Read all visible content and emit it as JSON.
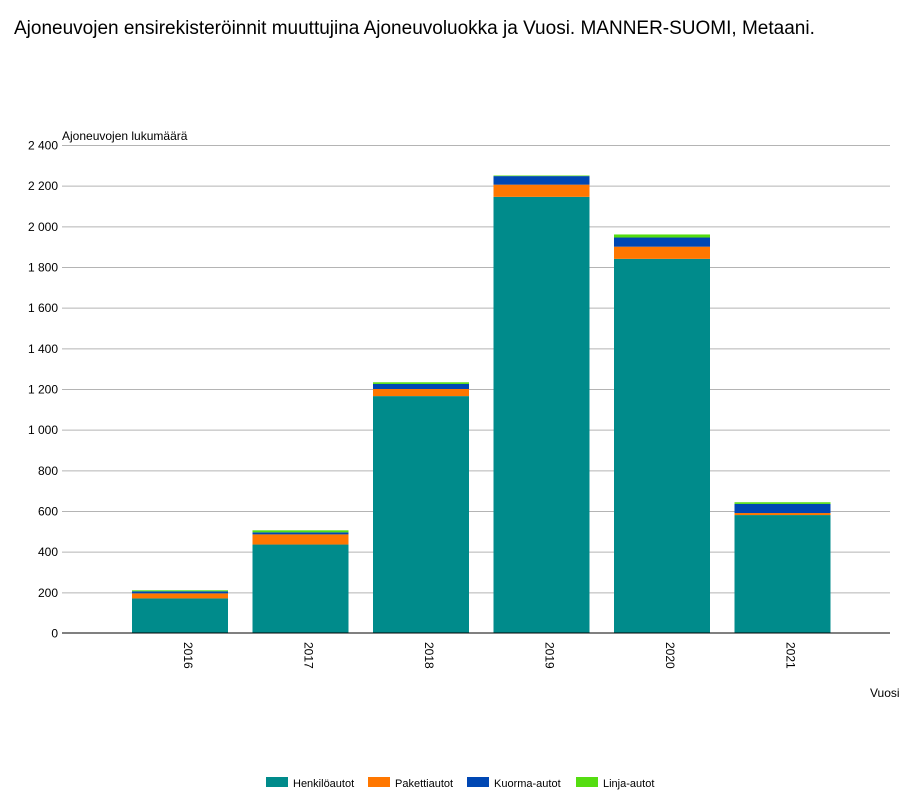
{
  "title": "Ajoneuvojen ensirekisteröinnit muuttujina Ajoneuvoluokka ja Vuosi. MANNER-SUOMI, Metaani.",
  "chart_data": {
    "type": "bar",
    "stacked": true,
    "title": "Ajoneuvojen ensirekisteröinnit muuttujina Ajoneuvoluokka ja Vuosi. MANNER-SUOMI, Metaani.",
    "ylabel": "Ajoneuvojen lukumäärä",
    "xlabel": "Vuosi",
    "categories": [
      "2016",
      "2017",
      "2018",
      "2019",
      "2020",
      "2021"
    ],
    "ylim": [
      0,
      2400
    ],
    "yticks": [
      0,
      200,
      400,
      600,
      800,
      1000,
      1200,
      1400,
      1600,
      1800,
      2000,
      2200,
      2400
    ],
    "ytick_labels": [
      "0",
      "200",
      "400",
      "600",
      "800",
      "1 000",
      "1 200",
      "1 400",
      "1 600",
      "1 800",
      "2 000",
      "2 200",
      "2 400"
    ],
    "grid": true,
    "legend_position": "bottom",
    "series": [
      {
        "name": "Henkilöautot",
        "color": "#008b8b",
        "values": [
          170,
          435,
          1165,
          2145,
          1840,
          580
        ]
      },
      {
        "name": "Pakettiautot",
        "color": "#ff7700",
        "values": [
          25,
          50,
          35,
          60,
          60,
          10
        ]
      },
      {
        "name": "Kuorma-autot",
        "color": "#0047b3",
        "values": [
          10,
          10,
          25,
          42,
          45,
          45
        ]
      },
      {
        "name": "Linja-autot",
        "color": "#55dd11",
        "values": [
          5,
          10,
          8,
          3,
          15,
          8
        ]
      }
    ]
  }
}
